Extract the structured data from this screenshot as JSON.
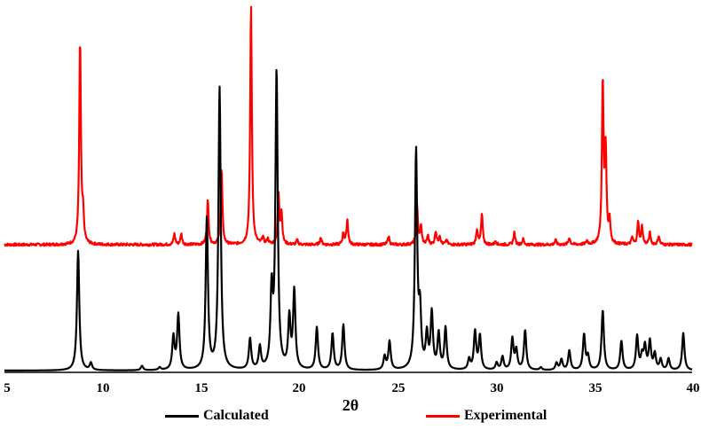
{
  "chart_data": {
    "type": "line",
    "title": "",
    "xlabel": "2θ",
    "ylabel": "",
    "xlim": [
      5,
      40
    ],
    "xticks": [
      5,
      10,
      15,
      20,
      25,
      30,
      35,
      40
    ],
    "grid": false,
    "legend_position": "bottom",
    "y_units": "relative intensity (px above baseline, stacked/offset)",
    "series": [
      {
        "name": "Calculated",
        "color": "#000000",
        "baseline_offset": 0,
        "peaks_2theta": [
          8.75,
          9.4,
          12.0,
          12.9,
          13.6,
          13.85,
          15.3,
          15.95,
          17.5,
          18.0,
          18.6,
          18.85,
          19.5,
          19.75,
          20.9,
          21.7,
          22.25,
          24.35,
          24.6,
          25.95,
          26.15,
          26.5,
          26.75,
          27.1,
          27.45,
          28.65,
          28.95,
          29.2,
          30.05,
          30.35,
          30.85,
          31.05,
          31.5,
          32.3,
          33.1,
          33.35,
          33.75,
          34.5,
          34.7,
          35.45,
          36.4,
          37.2,
          37.45,
          37.6,
          37.85,
          38.1,
          38.4,
          38.8,
          39.55
        ],
        "peak_heights": [
          135,
          8,
          5,
          3,
          37,
          62,
          170,
          318,
          35,
          25,
          85,
          335,
          57,
          88,
          48,
          41,
          51,
          15,
          32,
          245,
          60,
          38,
          63,
          40,
          47,
          12,
          43,
          38,
          8,
          15,
          35,
          22,
          45,
          3,
          8,
          12,
          22,
          40,
          15,
          68,
          33,
          38,
          15,
          26,
          32,
          18,
          12,
          13,
          42
        ],
        "peak_width": 0.07
      },
      {
        "name": "Experimental",
        "color": "#ff0000",
        "baseline_offset": 142,
        "peaks_2theta": [
          8.85,
          9.0,
          13.65,
          14.0,
          15.35,
          16.05,
          17.55,
          18.15,
          18.4,
          18.95,
          19.1,
          19.9,
          21.1,
          22.25,
          22.45,
          24.55,
          26.0,
          26.2,
          26.55,
          26.95,
          27.15,
          27.5,
          29.05,
          29.3,
          30.0,
          30.95,
          31.4,
          33.05,
          33.75,
          34.65,
          35.45,
          35.6,
          35.8,
          36.95,
          37.25,
          37.45,
          37.85,
          38.3
        ],
        "peak_heights": [
          230,
          30,
          12,
          12,
          50,
          85,
          270,
          8,
          6,
          55,
          35,
          5,
          8,
          13,
          28,
          10,
          45,
          20,
          10,
          15,
          10,
          5,
          17,
          34,
          4,
          14,
          6,
          5,
          8,
          4,
          182,
          103,
          25,
          8,
          25,
          20,
          13,
          10
        ],
        "peak_width": 0.05
      }
    ]
  },
  "axis": {
    "tick_labels": [
      "5",
      "10",
      "15",
      "20",
      "25",
      "30",
      "35",
      "40"
    ],
    "xlabel": "2θ"
  },
  "legend": {
    "items": [
      {
        "label": "Calculated",
        "color": "#000000"
      },
      {
        "label": "Experimental",
        "color": "#ff0000"
      }
    ]
  }
}
